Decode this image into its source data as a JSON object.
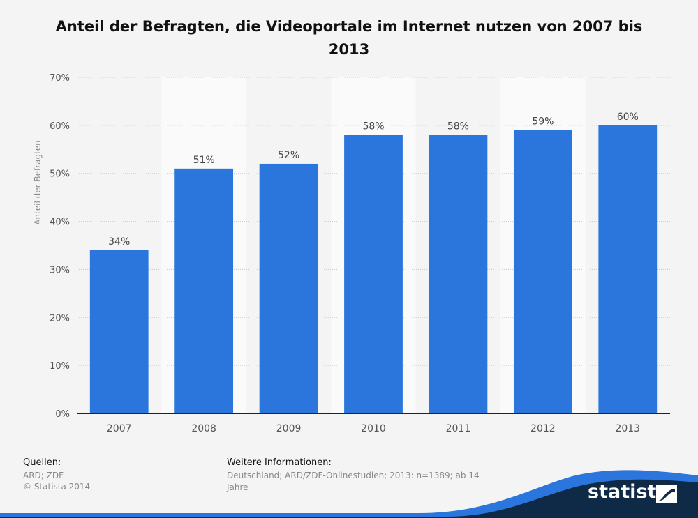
{
  "title": "Anteil der Befragten, die Videoportale im Internet nutzen von 2007 bis 2013",
  "chart_data": {
    "type": "bar",
    "categories": [
      "2007",
      "2008",
      "2009",
      "2010",
      "2011",
      "2012",
      "2013"
    ],
    "values": [
      34,
      51,
      52,
      58,
      58,
      59,
      60
    ],
    "data_labels": [
      "34%",
      "51%",
      "52%",
      "58%",
      "58%",
      "59%",
      "60%"
    ],
    "ylabel": "Anteil der Befragten",
    "xlabel": "",
    "ylim": [
      0,
      70
    ],
    "yticks": [
      0,
      10,
      20,
      30,
      40,
      50,
      60,
      70
    ],
    "ytick_labels": [
      "0%",
      "10%",
      "20%",
      "30%",
      "40%",
      "50%",
      "60%",
      "70%"
    ],
    "grid": true,
    "bar_color": "#2a76dd"
  },
  "footer": {
    "sources_heading": "Quellen:",
    "sources_line1": "ARD; ZDF",
    "sources_line2": "© Statista 2014",
    "info_heading": "Weitere Informationen:",
    "info_text": "Deutschland; ARD/ZDF-Onlinestudien; 2013: n=1389; ab 14 Jahre"
  },
  "brand": {
    "name": "statista",
    "navy": "#0e2a47",
    "blue": "#2a76dd"
  }
}
